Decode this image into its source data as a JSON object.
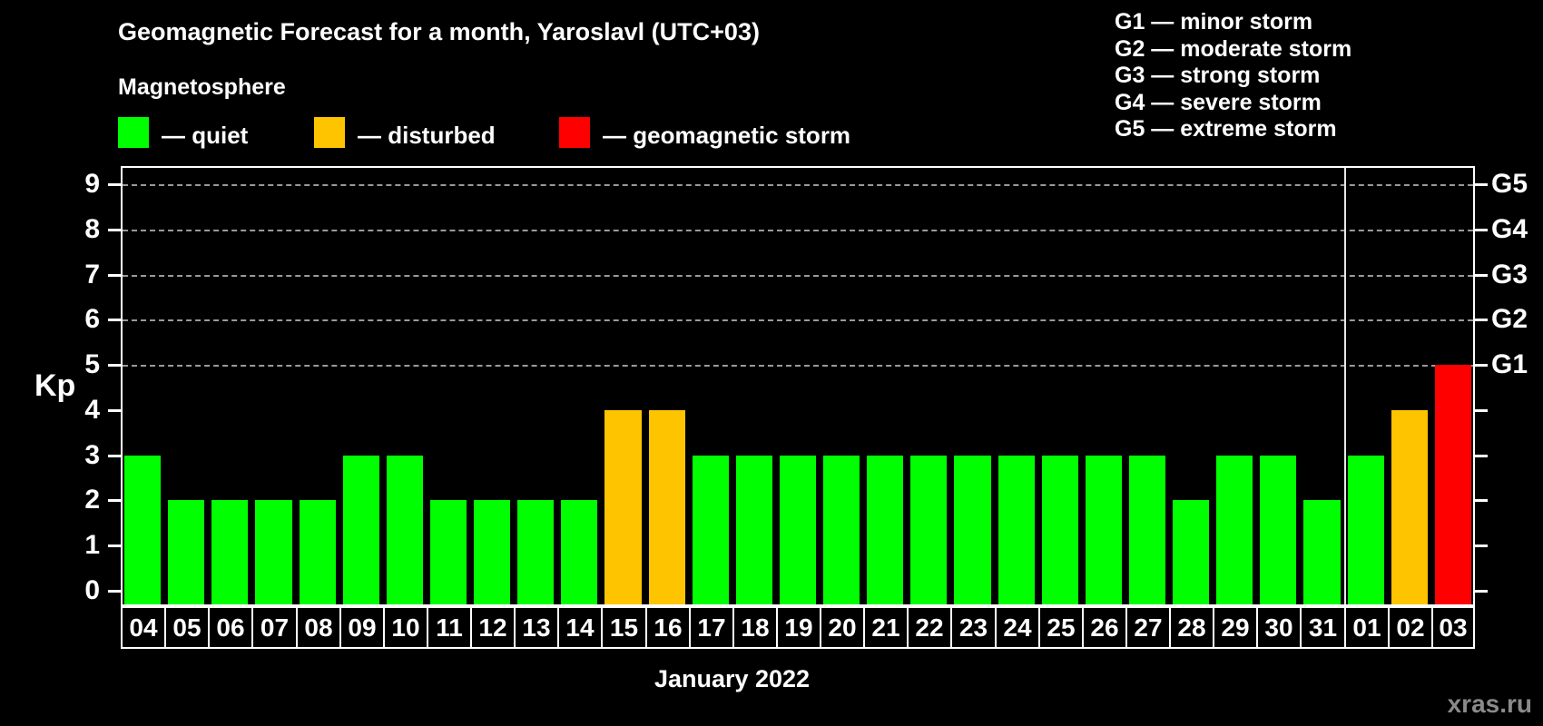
{
  "title": "Geomagnetic Forecast for a month, Yaroslavl (UTC+03)",
  "subtitle": "Magnetosphere",
  "legend": [
    {
      "status": "quiet",
      "label": "— quiet"
    },
    {
      "status": "disturbed",
      "label": "— disturbed"
    },
    {
      "status": "storm",
      "label": "— geomagnetic storm"
    }
  ],
  "storm_scale": [
    "G1 — minor storm",
    "G2 — moderate storm",
    "G3 — strong storm",
    "G4 — severe storm",
    "G5 — extreme storm"
  ],
  "colors": {
    "quiet": "#00ff00",
    "disturbed": "#ffc400",
    "storm": "#ff0000",
    "grid": "#9a9a9a",
    "axis": "#ffffff",
    "watermark": "#8a8a8a"
  },
  "watermark": "xras.ru",
  "chart_data": {
    "type": "bar",
    "title": "Geomagnetic Forecast for a month, Yaroslavl (UTC+03)",
    "ylabel_left": "Kp",
    "xlabel": "January 2022",
    "ylim": [
      0,
      9
    ],
    "grid": "dashed horizontal at Kp 5-9 only",
    "yticks_left": [
      0,
      1,
      2,
      3,
      4,
      5,
      6,
      7,
      8,
      9
    ],
    "gridlines_at": [
      5,
      6,
      7,
      8,
      9
    ],
    "right_axis": [
      {
        "kp": 5,
        "label": "G1"
      },
      {
        "kp": 6,
        "label": "G2"
      },
      {
        "kp": 7,
        "label": "G3"
      },
      {
        "kp": 8,
        "label": "G4"
      },
      {
        "kp": 9,
        "label": "G5"
      }
    ],
    "categories": [
      "04",
      "05",
      "06",
      "07",
      "08",
      "09",
      "10",
      "11",
      "12",
      "13",
      "14",
      "15",
      "16",
      "17",
      "18",
      "19",
      "20",
      "21",
      "22",
      "23",
      "24",
      "25",
      "26",
      "27",
      "28",
      "29",
      "30",
      "31",
      "01",
      "02",
      "03"
    ],
    "values": [
      3,
      2,
      2,
      2,
      2,
      3,
      3,
      2,
      2,
      2,
      2,
      4,
      4,
      3,
      3,
      3,
      3,
      3,
      3,
      3,
      3,
      3,
      3,
      3,
      2,
      3,
      3,
      2,
      3,
      4,
      5
    ],
    "statuses": [
      "quiet",
      "quiet",
      "quiet",
      "quiet",
      "quiet",
      "quiet",
      "quiet",
      "quiet",
      "quiet",
      "quiet",
      "quiet",
      "disturbed",
      "disturbed",
      "quiet",
      "quiet",
      "quiet",
      "quiet",
      "quiet",
      "quiet",
      "quiet",
      "quiet",
      "quiet",
      "quiet",
      "quiet",
      "quiet",
      "quiet",
      "quiet",
      "quiet",
      "quiet",
      "disturbed",
      "storm"
    ],
    "month_separator_after_index": 27
  }
}
